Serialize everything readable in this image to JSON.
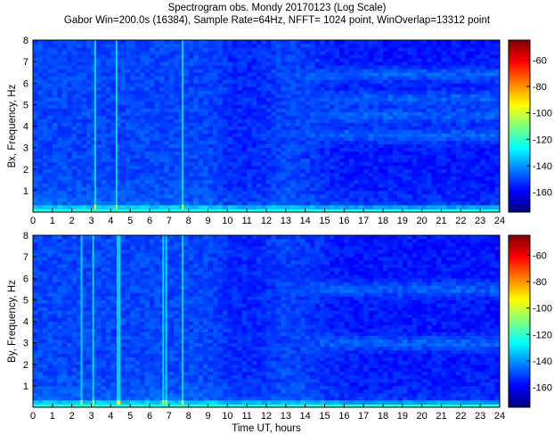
{
  "title": {
    "line1": "Spectrogram   obs. Mondy 20170123 (Log Scale)",
    "line2": "Gabor Win=200.0s (16384), Sample Rate=64Hz, NFFT= 1024 point, WinOverlap=13312 point"
  },
  "chart_data": [
    {
      "type": "heatmap",
      "ylabel": "Bx, Frequency, Hz",
      "xlabel": "",
      "xlim": [
        0,
        24
      ],
      "ylim": [
        0,
        8
      ],
      "x_ticks": [
        0,
        1,
        2,
        3,
        4,
        5,
        6,
        7,
        8,
        9,
        10,
        11,
        12,
        13,
        14,
        15,
        16,
        17,
        18,
        19,
        20,
        21,
        22,
        23,
        24
      ],
      "y_ticks": [
        1,
        2,
        3,
        4,
        5,
        6,
        7,
        8
      ],
      "colorbar": {
        "ticks": [
          -60,
          -80,
          -100,
          -120,
          -140,
          -160
        ],
        "range": [
          -175,
          -45
        ],
        "colormap": "jet"
      },
      "features": {
        "bright_vertical_lines_hours": [
          3.2,
          4.3,
          7.7
        ],
        "bright_band_freq_hz": [
          3.6,
          4.5,
          5.3,
          6.4
        ],
        "band_start_hour": 13
      }
    },
    {
      "type": "heatmap",
      "ylabel": "By, Frequency, Hz",
      "xlabel": "Time UT, hours",
      "xlim": [
        0,
        24
      ],
      "ylim": [
        0,
        8
      ],
      "x_ticks": [
        0,
        1,
        2,
        3,
        4,
        5,
        6,
        7,
        8,
        9,
        10,
        11,
        12,
        13,
        14,
        15,
        16,
        17,
        18,
        19,
        20,
        21,
        22,
        23,
        24
      ],
      "y_ticks": [
        1,
        2,
        3,
        4,
        5,
        6,
        7,
        8
      ],
      "colorbar": {
        "ticks": [
          -60,
          -80,
          -100,
          -120,
          -140,
          -160
        ],
        "range": [
          -175,
          -45
        ],
        "colormap": "jet"
      },
      "features": {
        "bright_vertical_lines_hours": [
          2.5,
          3.1,
          4.35,
          4.45,
          6.7,
          6.85,
          7.7
        ],
        "bright_band_freq_hz": [
          3.0,
          5.5
        ],
        "band_start_hour": 13
      }
    }
  ],
  "colors": {
    "background": "#ffffff",
    "axis": "#000000"
  }
}
